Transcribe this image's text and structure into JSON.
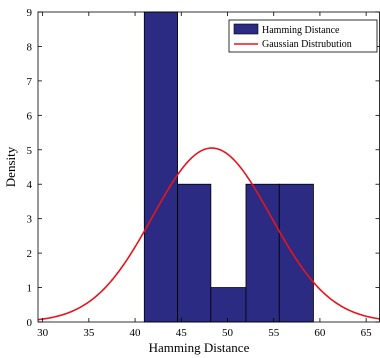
{
  "chart_data": {
    "type": "bar",
    "xlabel": "Hamming Distance",
    "ylabel": "Density",
    "xlim": [
      29.5,
      66.5
    ],
    "ylim": [
      0,
      9
    ],
    "xticks": [
      30,
      35,
      40,
      45,
      50,
      55,
      60,
      65
    ],
    "yticks": [
      0,
      1,
      2,
      3,
      4,
      5,
      6,
      7,
      8,
      9
    ],
    "grid": false,
    "legend_position": "top-right",
    "series": [
      {
        "name": "Hamming Distance",
        "kind": "histogram",
        "color": "#2b2b84",
        "bins": [
          {
            "x0": 41.0,
            "x1": 44.6,
            "value": 9
          },
          {
            "x0": 44.6,
            "x1": 48.2,
            "value": 4
          },
          {
            "x0": 48.2,
            "x1": 52.0,
            "value": 1
          },
          {
            "x0": 52.0,
            "x1": 55.6,
            "value": 4
          },
          {
            "x0": 55.6,
            "x1": 59.3,
            "value": 4
          }
        ]
      },
      {
        "name": "Gaussian Distrubution",
        "kind": "gaussian",
        "color": "#e8141c",
        "mean": 48.3,
        "sd": 6.4,
        "peak": 5.05
      }
    ]
  }
}
